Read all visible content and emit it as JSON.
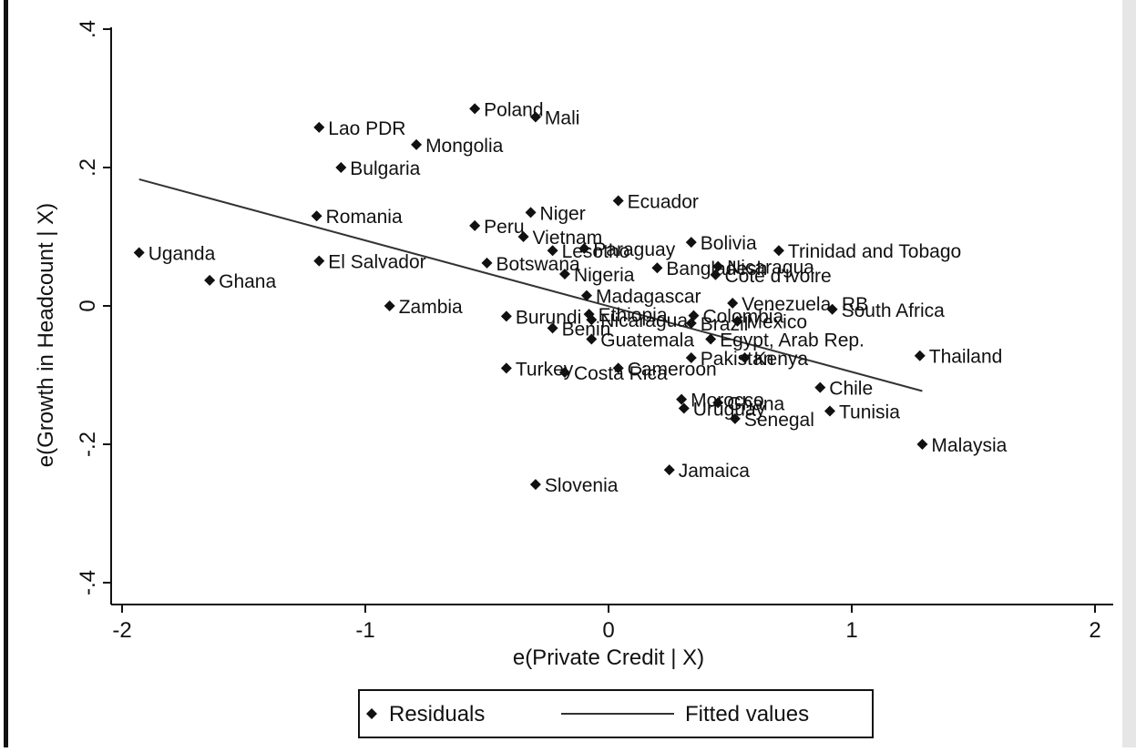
{
  "chart_data": {
    "type": "scatter",
    "xlabel": "e(Private Credit | X)",
    "ylabel": "e(Growth in Headcount | X)",
    "xlim": [
      -2.08,
      2.05
    ],
    "ylim": [
      -0.43,
      0.43
    ],
    "xticks": [
      -2,
      -1,
      0,
      1,
      2
    ],
    "xtick_labels": [
      "-2",
      "-1",
      "0",
      "1",
      "2"
    ],
    "yticks": [
      0.4,
      0.2,
      0,
      -0.2,
      -0.4
    ],
    "ytick_labels": [
      ".4",
      ".2",
      "0",
      "-.2",
      "-.4"
    ],
    "grid": false,
    "legend_position": "bottom",
    "legend": [
      "Residuals",
      "Fitted values"
    ],
    "series": [
      {
        "name": "Residuals",
        "marker": "diamond",
        "points": [
          {
            "label": "Uganda",
            "x": -1.93,
            "y": 0.077
          },
          {
            "label": "Ghana",
            "x": -1.64,
            "y": 0.037
          },
          {
            "label": "Lao PDR",
            "x": -1.19,
            "y": 0.258
          },
          {
            "label": "Bulgaria",
            "x": -1.1,
            "y": 0.2
          },
          {
            "label": "Romania",
            "x": -1.2,
            "y": 0.13
          },
          {
            "label": "El Salvador",
            "x": -1.19,
            "y": 0.065
          },
          {
            "label": "Zambia",
            "x": -0.9,
            "y": 0.0
          },
          {
            "label": "Mongolia",
            "x": -0.79,
            "y": 0.233
          },
          {
            "label": "Poland",
            "x": -0.55,
            "y": 0.285
          },
          {
            "label": "Mali",
            "x": -0.3,
            "y": 0.273
          },
          {
            "label": "Peru",
            "x": -0.55,
            "y": 0.116
          },
          {
            "label": "Niger",
            "x": -0.32,
            "y": 0.135
          },
          {
            "label": "Vietnam",
            "x": -0.35,
            "y": 0.1
          },
          {
            "label": "Botswana",
            "x": -0.5,
            "y": 0.062
          },
          {
            "label": "Burundi",
            "x": -0.42,
            "y": -0.015
          },
          {
            "label": "Turkey",
            "x": -0.42,
            "y": -0.09
          },
          {
            "label": "Slovenia",
            "x": -0.3,
            "y": -0.258
          },
          {
            "label": "Lesotho",
            "x": -0.23,
            "y": 0.08
          },
          {
            "label": "Nigeria",
            "x": -0.18,
            "y": 0.046
          },
          {
            "label": "Benin",
            "x": -0.23,
            "y": -0.032
          },
          {
            "label": "Costa Rica",
            "x": -0.18,
            "y": -0.096
          },
          {
            "label": "Paraguay",
            "x": -0.1,
            "y": 0.083
          },
          {
            "label": "Madagascar",
            "x": -0.09,
            "y": 0.015
          },
          {
            "label": "Ethiopia",
            "x": -0.08,
            "y": -0.012
          },
          {
            "label": "Nicaragua",
            "x": -0.07,
            "y": -0.02
          },
          {
            "label": "Guatemala",
            "x": -0.07,
            "y": -0.048
          },
          {
            "label": "Cameroon",
            "x": 0.04,
            "y": -0.09
          },
          {
            "label": "Ecuador",
            "x": 0.04,
            "y": 0.152
          },
          {
            "label": "Bangladesh",
            "x": 0.2,
            "y": 0.055
          },
          {
            "label": "Colombia",
            "x": 0.35,
            "y": -0.014
          },
          {
            "label": "Brazil",
            "x": 0.34,
            "y": -0.025
          },
          {
            "label": "Egypt, Arab Rep.",
            "x": 0.42,
            "y": -0.048
          },
          {
            "label": "Pakistan",
            "x": 0.34,
            "y": -0.075
          },
          {
            "label": "Morocco",
            "x": 0.3,
            "y": -0.135
          },
          {
            "label": "Uruguay",
            "x": 0.31,
            "y": -0.148
          },
          {
            "label": "Jamaica",
            "x": 0.25,
            "y": -0.237
          },
          {
            "label": "Bolivia",
            "x": 0.34,
            "y": 0.092
          },
          {
            "label": "Nicaragua",
            "x": 0.45,
            "y": 0.057
          },
          {
            "label": "Cote d'Ivoire",
            "x": 0.44,
            "y": 0.045
          },
          {
            "label": "Venezuela, RB",
            "x": 0.51,
            "y": 0.004
          },
          {
            "label": "Mexico",
            "x": 0.53,
            "y": -0.022
          },
          {
            "label": "Kenya",
            "x": 0.56,
            "y": -0.075
          },
          {
            "label": "Ghana",
            "x": 0.45,
            "y": -0.14
          },
          {
            "label": "Senegal",
            "x": 0.52,
            "y": -0.163
          },
          {
            "label": "Trinidad and Tobago",
            "x": 0.7,
            "y": 0.08
          },
          {
            "label": "South Africa",
            "x": 0.92,
            "y": -0.005
          },
          {
            "label": "Chile",
            "x": 0.87,
            "y": -0.118
          },
          {
            "label": "Tunisia",
            "x": 0.91,
            "y": -0.152
          },
          {
            "label": "Thailand",
            "x": 1.28,
            "y": -0.072
          },
          {
            "label": "Malaysia",
            "x": 1.29,
            "y": -0.2
          }
        ]
      },
      {
        "name": "Fitted values",
        "type": "line",
        "x": [
          -1.93,
          1.29
        ],
        "y": [
          0.183,
          -0.123
        ]
      }
    ]
  }
}
